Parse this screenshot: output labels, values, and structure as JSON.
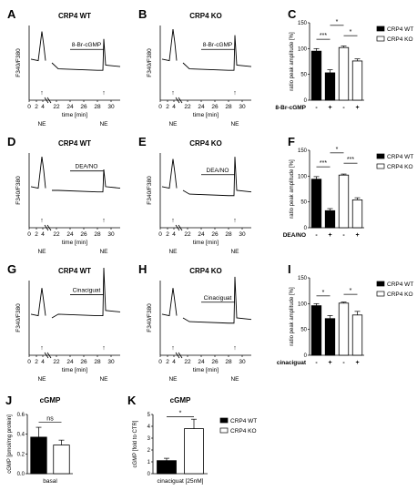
{
  "panels": [
    {
      "letter": "A",
      "title": "CRP4 WT",
      "ylabel": "F340/F380",
      "treatment": "8-Br-cGMP",
      "xlabel": "time [min]",
      "ticks": [
        "0",
        "2",
        "4",
        "22",
        "24",
        "26",
        "28",
        "30"
      ],
      "ne": [
        "NE",
        "NE"
      ],
      "trace": {
        "baseline": 0.55,
        "spike1": 0.92,
        "plateau": 0.42,
        "spike2": 0.4
      }
    },
    {
      "letter": "B",
      "title": "CRP4 KO",
      "ylabel": "F340/F380",
      "treatment": "8-Br-cGMP",
      "xlabel": "time [min]",
      "ticks": [
        "0",
        "2",
        "4",
        "22",
        "24",
        "26",
        "28",
        "30"
      ],
      "ne": [
        "NE",
        "NE"
      ],
      "trace": {
        "baseline": 0.55,
        "spike1": 0.95,
        "plateau": 0.42,
        "spike2": 0.45
      }
    },
    {
      "letter": "D",
      "title": "CRP4 WT",
      "ylabel": "F340/F380",
      "treatment": "DEA/NO",
      "xlabel": "time [min]",
      "ticks": [
        "0",
        "2",
        "4",
        "22",
        "24",
        "26",
        "28",
        "30"
      ],
      "ne": [
        "NE",
        "NE"
      ],
      "trace": {
        "baseline": 0.55,
        "spike1": 0.95,
        "plateau": 0.5,
        "spike2": 0.28
      }
    },
    {
      "letter": "E",
      "title": "CRP4 KO",
      "ylabel": "F340/F380",
      "treatment": "DEA/NO",
      "xlabel": "time [min]",
      "ticks": [
        "0",
        "2",
        "4",
        "22",
        "24",
        "26",
        "28",
        "30"
      ],
      "ne": [
        "NE",
        "NE"
      ],
      "trace": {
        "baseline": 0.55,
        "spike1": 0.92,
        "plateau": 0.45,
        "spike2": 0.5
      }
    },
    {
      "letter": "G",
      "title": "CRP4 WT",
      "ylabel": "F340/F380",
      "treatment": "Cinaciguat",
      "xlabel": "time [min]",
      "ticks": [
        "0",
        "2",
        "4",
        "22",
        "24",
        "26",
        "28",
        "30"
      ],
      "ne": [
        "NE",
        "NE"
      ],
      "trace": {
        "baseline": 0.55,
        "spike1": 0.9,
        "plateau": 0.55,
        "spike2": 0.62
      }
    },
    {
      "letter": "H",
      "title": "CRP4 KO",
      "ylabel": "F340/F380",
      "treatment": "Cinaciguat",
      "xlabel": "time [min]",
      "ticks": [
        "0",
        "2",
        "4",
        "22",
        "24",
        "26",
        "28",
        "30"
      ],
      "ne": [
        "NE",
        "NE"
      ],
      "trace": {
        "baseline": 0.55,
        "spike1": 0.9,
        "plateau": 0.45,
        "spike2": 0.6
      }
    }
  ],
  "chart_data": [
    {
      "letter": "C",
      "type": "bar",
      "ylabel": "ratio peak amplitude [%]",
      "ylim": [
        0,
        150
      ],
      "yticks": [
        "0",
        "50",
        "100",
        "150"
      ],
      "categories": [
        "CRP4 WT",
        "CRP4 WT",
        "CRP4 KO",
        "CRP4 KO"
      ],
      "treatment_label": "8-Br-cGMP",
      "treatment_signs": [
        "-",
        "+",
        "-",
        "+"
      ],
      "values": [
        95,
        53,
        102,
        76
      ],
      "errors": [
        5,
        6,
        3,
        4
      ],
      "fills": [
        "#000000",
        "#000000",
        "#ffffff",
        "#ffffff"
      ],
      "legend": [
        {
          "label": "CRP4 WT",
          "color": "#000000"
        },
        {
          "label": "CRP4 KO",
          "color": "#ffffff"
        }
      ],
      "legend_star": "*",
      "sig": [
        {
          "from": 0,
          "to": 1,
          "label": "***",
          "level": 118
        },
        {
          "from": 1,
          "to": 2,
          "label": "*",
          "level": 145
        },
        {
          "from": 2,
          "to": 3,
          "label": "*",
          "level": 125
        }
      ]
    },
    {
      "letter": "F",
      "type": "bar",
      "ylabel": "ratio peak amplitude [%]",
      "ylim": [
        0,
        150
      ],
      "yticks": [
        "0",
        "50",
        "100",
        "150"
      ],
      "categories": [
        "CRP4 WT",
        "CRP4 WT",
        "CRP4 KO",
        "CRP4 KO"
      ],
      "treatment_label": "DEA/NO",
      "treatment_signs": [
        "-",
        "+",
        "-",
        "+"
      ],
      "values": [
        94,
        33,
        102,
        54
      ],
      "errors": [
        5,
        4,
        2,
        4
      ],
      "fills": [
        "#000000",
        "#000000",
        "#ffffff",
        "#ffffff"
      ],
      "legend": [
        {
          "label": "CRP4 WT",
          "color": "#000000"
        },
        {
          "label": "CRP4 KO",
          "color": "#ffffff"
        }
      ],
      "legend_star": "*",
      "sig": [
        {
          "from": 0,
          "to": 1,
          "label": "***",
          "level": 118
        },
        {
          "from": 1,
          "to": 2,
          "label": "*",
          "level": 145
        },
        {
          "from": 2,
          "to": 3,
          "label": "***",
          "level": 125
        }
      ]
    },
    {
      "letter": "I",
      "type": "bar",
      "ylabel": "ratio peak amplitude [%]",
      "ylim": [
        0,
        150
      ],
      "yticks": [
        "0",
        "50",
        "100",
        "150"
      ],
      "categories": [
        "CRP4 WT",
        "CRP4 WT",
        "CRP4 KO",
        "CRP4 KO"
      ],
      "treatment_label": "cinaciguat",
      "treatment_signs": [
        "-",
        "+",
        "-",
        "+"
      ],
      "values": [
        96,
        71,
        101,
        78
      ],
      "errors": [
        4,
        6,
        2,
        7
      ],
      "fills": [
        "#000000",
        "#000000",
        "#ffffff",
        "#ffffff"
      ],
      "legend": [
        {
          "label": "CRP4 WT",
          "color": "#000000"
        },
        {
          "label": "CRP4 KO",
          "color": "#ffffff"
        }
      ],
      "legend_star": "",
      "sig": [
        {
          "from": 0,
          "to": 1,
          "label": "*",
          "level": 115
        },
        {
          "from": 2,
          "to": 3,
          "label": "*",
          "level": 118
        }
      ]
    },
    {
      "letter": "J",
      "type": "bar",
      "title": "cGMP",
      "ylabel": "cGMP [pmol/mg protein]",
      "ylim": [
        0,
        0.6
      ],
      "yticks": [
        "0.0",
        "0.2",
        "0.4",
        "0.6"
      ],
      "categories": [
        "CRP4 WT",
        "CRP4 KO"
      ],
      "xlabel": "basal",
      "values": [
        0.37,
        0.29
      ],
      "errors": [
        0.1,
        0.05
      ],
      "fills": [
        "#000000",
        "#ffffff"
      ],
      "sig": [
        {
          "from": 0,
          "to": 1,
          "label": "ns",
          "level": 0.52
        }
      ]
    },
    {
      "letter": "K",
      "type": "bar",
      "title": "cGMP",
      "ylabel": "cGMP [fold to CTR]",
      "ylim": [
        0,
        5
      ],
      "yticks": [
        "0",
        "1",
        "2",
        "3",
        "4",
        "5"
      ],
      "categories": [
        "CRP4 WT",
        "CRP4 KO"
      ],
      "xlabel": "cinaciguat [25nM]",
      "values": [
        1.1,
        3.8
      ],
      "errors": [
        0.2,
        0.8
      ],
      "fills": [
        "#000000",
        "#ffffff"
      ],
      "legend": [
        {
          "label": "CRP4 WT",
          "color": "#000000"
        },
        {
          "label": "CRP4 KO",
          "color": "#ffffff"
        }
      ],
      "sig": [
        {
          "from": 0,
          "to": 1,
          "label": "*",
          "level": 4.8
        }
      ]
    }
  ]
}
